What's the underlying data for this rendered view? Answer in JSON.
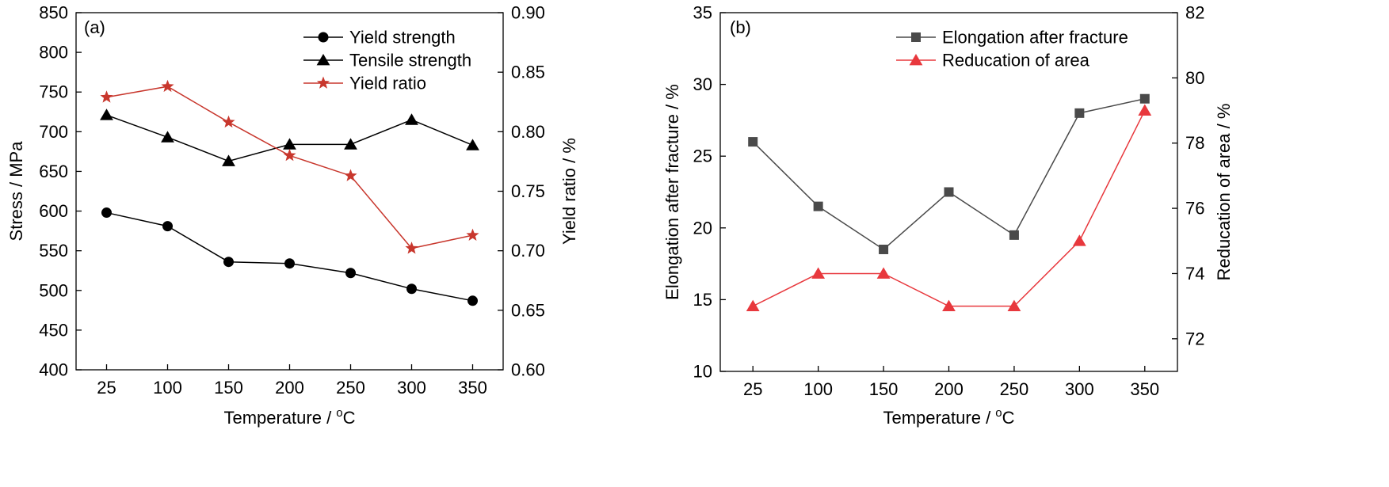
{
  "chart_data": [
    {
      "type": "line",
      "panel_label": "(a)",
      "categories": [
        "25",
        "100",
        "150",
        "200",
        "250",
        "300",
        "350"
      ],
      "xlabel": "Temperature / °C",
      "xlabel_prefix": "Temperature / ",
      "xlabel_sup": "o",
      "xlabel_suffix": "C",
      "ylabel": "Stress / MPa",
      "ylim": [
        400,
        850
      ],
      "yticks": [
        "400",
        "450",
        "500",
        "550",
        "600",
        "650",
        "700",
        "750",
        "800",
        "850"
      ],
      "y2label": "Yield ratio / %",
      "y2lim": [
        0.6,
        0.9
      ],
      "y2ticks": [
        "0.60",
        "0.65",
        "0.70",
        "0.75",
        "0.80",
        "0.85",
        "0.90"
      ],
      "legend_position": "top-right",
      "series": [
        {
          "name": "Yield strength",
          "axis": "left",
          "marker": "circle",
          "color": "#000000",
          "values": [
            598,
            581,
            536,
            534,
            522,
            502,
            487
          ]
        },
        {
          "name": "Tensile strength",
          "axis": "left",
          "marker": "triangle",
          "color": "#000000",
          "values": [
            721,
            693,
            663,
            684,
            684,
            715,
            683
          ]
        },
        {
          "name": "Yield ratio",
          "axis": "right",
          "marker": "star",
          "color": "#c8372d",
          "values": [
            0.829,
            0.838,
            0.808,
            0.78,
            0.763,
            0.702,
            0.713
          ]
        }
      ]
    },
    {
      "type": "line",
      "panel_label": "(b)",
      "categories": [
        "25",
        "100",
        "150",
        "200",
        "250",
        "300",
        "350"
      ],
      "xlabel": "Temperature / °C",
      "xlabel_prefix": "Temperature / ",
      "xlabel_sup": "o",
      "xlabel_suffix": "C",
      "ylabel": "Elongation after fracture / %",
      "ylim": [
        10,
        35
      ],
      "yticks": [
        "10",
        "15",
        "20",
        "25",
        "30",
        "35"
      ],
      "y2label": "Reducation of area / %",
      "y2lim": [
        71,
        82
      ],
      "y2ticks": [
        "72",
        "74",
        "76",
        "78",
        "80",
        "82"
      ],
      "legend_position": "top-right",
      "series": [
        {
          "name": "Elongation after fracture",
          "axis": "left",
          "marker": "square",
          "color": "#4a4a4a",
          "values": [
            26,
            21.5,
            18.5,
            22.5,
            19.5,
            28,
            29
          ]
        },
        {
          "name": "Reducation of area",
          "axis": "right",
          "marker": "triangle",
          "color": "#e8383d",
          "values": [
            73,
            74,
            74,
            73,
            73,
            75,
            79
          ]
        }
      ]
    }
  ]
}
